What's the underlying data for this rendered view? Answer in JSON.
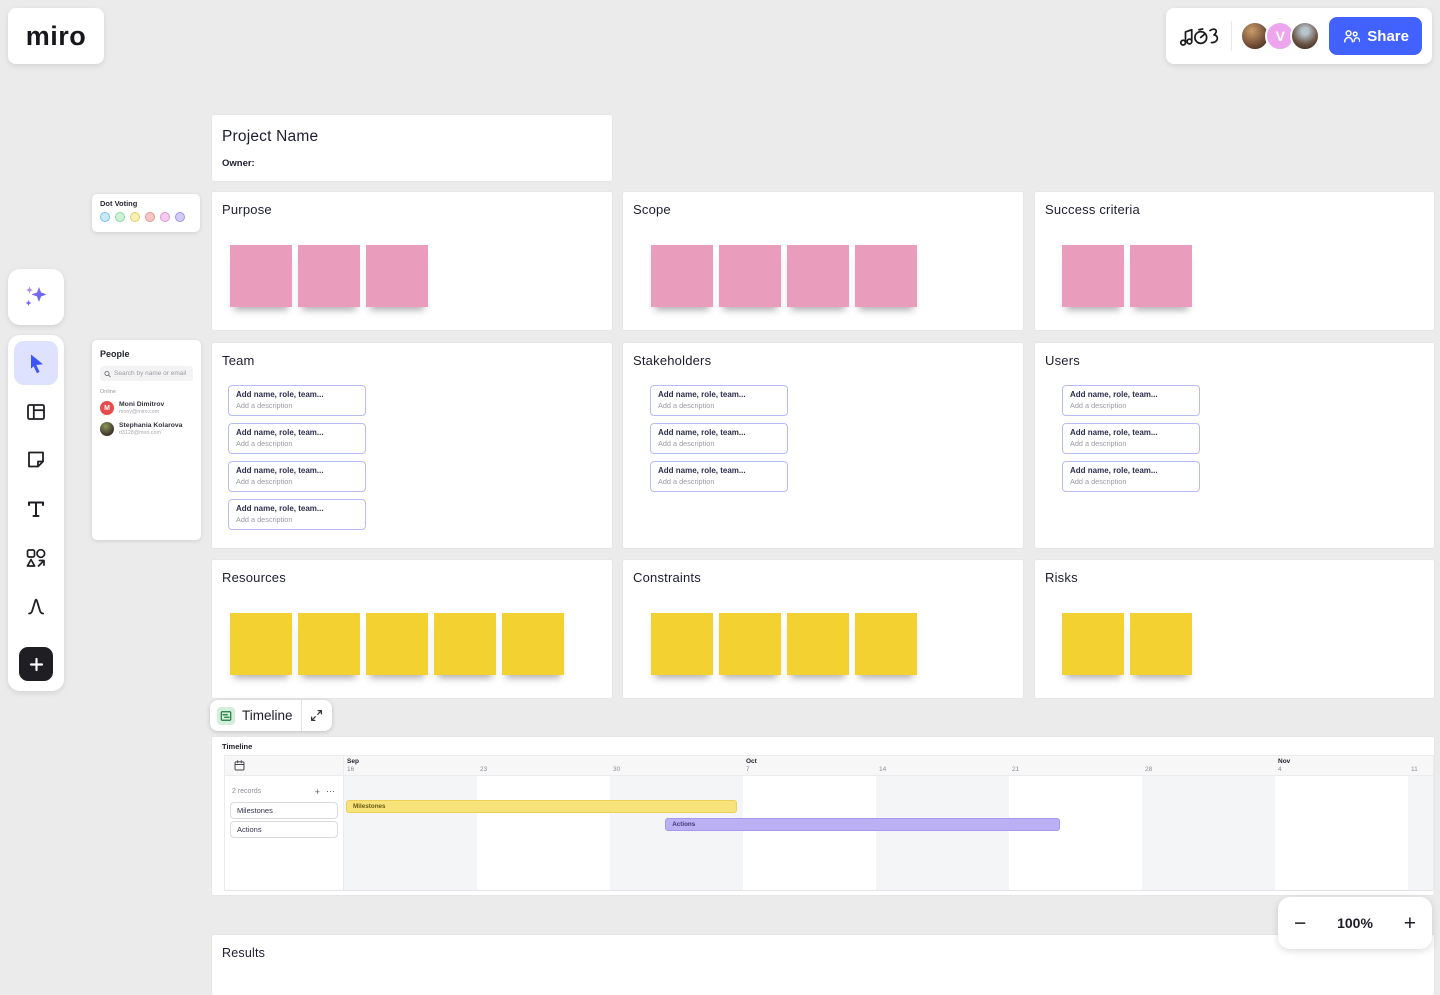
{
  "app": {
    "logo_text": "miro",
    "zoom_level": "100%",
    "zoom_out": "−",
    "zoom_in": "+"
  },
  "topbar": {
    "share_label": "Share",
    "avatars": [
      {
        "name": "avatar-user-photo-1",
        "type": "photo",
        "gradient": "radial-gradient(circle at 38% 30%, #c99d6c, #6e4a33 62%, #2b2017)"
      },
      {
        "name": "avatar-user-v",
        "type": "letter",
        "letter": "V",
        "bg": "#eda6ee"
      },
      {
        "name": "avatar-user-photo-2",
        "type": "photo",
        "gradient": "radial-gradient(circle at 50% 32%, #b6c4cc 15%, #6b5546 58%, #2b2017)"
      }
    ]
  },
  "dot_voting": {
    "title": "Dot Voting",
    "dots": [
      {
        "name": "blue",
        "fill": "#c8e9fa",
        "border": "#79c2e8"
      },
      {
        "name": "green",
        "fill": "#cdf2d8",
        "border": "#85dc9e"
      },
      {
        "name": "yellow",
        "fill": "#f8efb4",
        "border": "#e2ce6b"
      },
      {
        "name": "red",
        "fill": "#f8c8c4",
        "border": "#e4938c"
      },
      {
        "name": "pink",
        "fill": "#f6cbef",
        "border": "#dd96d4"
      },
      {
        "name": "purple",
        "fill": "#d2cbf8",
        "border": "#a094ea"
      }
    ]
  },
  "people": {
    "title": "People",
    "search_placeholder": "Search by name or email",
    "online_label": "Online",
    "users": [
      {
        "name": "Moni Dimitrov",
        "email": "mony@miro.com",
        "avatar_type": "letter",
        "avatar_letter": "M",
        "avatar_bg": "#e64c4c"
      },
      {
        "name": "Stephania Kolarova",
        "email": "d3128@miro.com",
        "avatar_type": "photo",
        "avatar_bg": "radial-gradient(circle at 40% 30%, #8a9a5a, #4a4030 60%, #241d14)"
      }
    ]
  },
  "board": {
    "project_frame": {
      "title": "Project Name",
      "owner_label": "Owner:"
    },
    "sticky_frames": [
      {
        "title": "Purpose",
        "sticky_count": 3,
        "sticky_color": "#ea9cbd"
      },
      {
        "title": "Scope",
        "sticky_count": 4,
        "sticky_color": "#ea9cbd"
      },
      {
        "title": "Success criteria",
        "sticky_count": 2,
        "sticky_color": "#ea9cbd"
      },
      {
        "title": "Resources",
        "sticky_count": 5,
        "sticky_color": "#f2d130"
      },
      {
        "title": "Constraints",
        "sticky_count": 4,
        "sticky_color": "#f2d130"
      },
      {
        "title": "Risks",
        "sticky_count": 2,
        "sticky_color": "#f2d130"
      }
    ],
    "card_frames": [
      {
        "title": "Team",
        "card_count": 4
      },
      {
        "title": "Stakeholders",
        "card_count": 3
      },
      {
        "title": "Users",
        "card_count": 3
      }
    ],
    "card_placeholder": {
      "title": "Add name, role, team...",
      "description": "Add a description"
    },
    "results_frame": {
      "title": "Results"
    }
  },
  "timeline": {
    "widget_label": "Timeline",
    "frame_title": "Timeline",
    "records_label": "2 records",
    "add_button": "+",
    "more_button": "⋯",
    "row_labels": [
      "Milestones",
      "Actions"
    ],
    "ticks": [
      {
        "day": "16",
        "month": "Sep",
        "week": 0
      },
      {
        "day": "23",
        "week": 1
      },
      {
        "day": "30",
        "week": 2
      },
      {
        "day": "7",
        "month": "Oct",
        "week": 3
      },
      {
        "day": "14",
        "week": 4
      },
      {
        "day": "21",
        "week": 5
      },
      {
        "day": "28",
        "week": 6
      },
      {
        "day": "4",
        "month": "Nov",
        "week": 7
      },
      {
        "day": "11",
        "week": 8
      }
    ],
    "bars": [
      {
        "label": "Milestones",
        "row": 0,
        "start_week": 0,
        "end_week": 2.97,
        "fill": "#f8e37b",
        "border": "#ebd058",
        "text": "#6b5a11"
      },
      {
        "label": "Actions",
        "row": 1,
        "start_week": 2.4,
        "end_week": 5.4,
        "fill": "#bcb0f4",
        "border": "#a697f0",
        "text": "#3f3776"
      }
    ]
  }
}
